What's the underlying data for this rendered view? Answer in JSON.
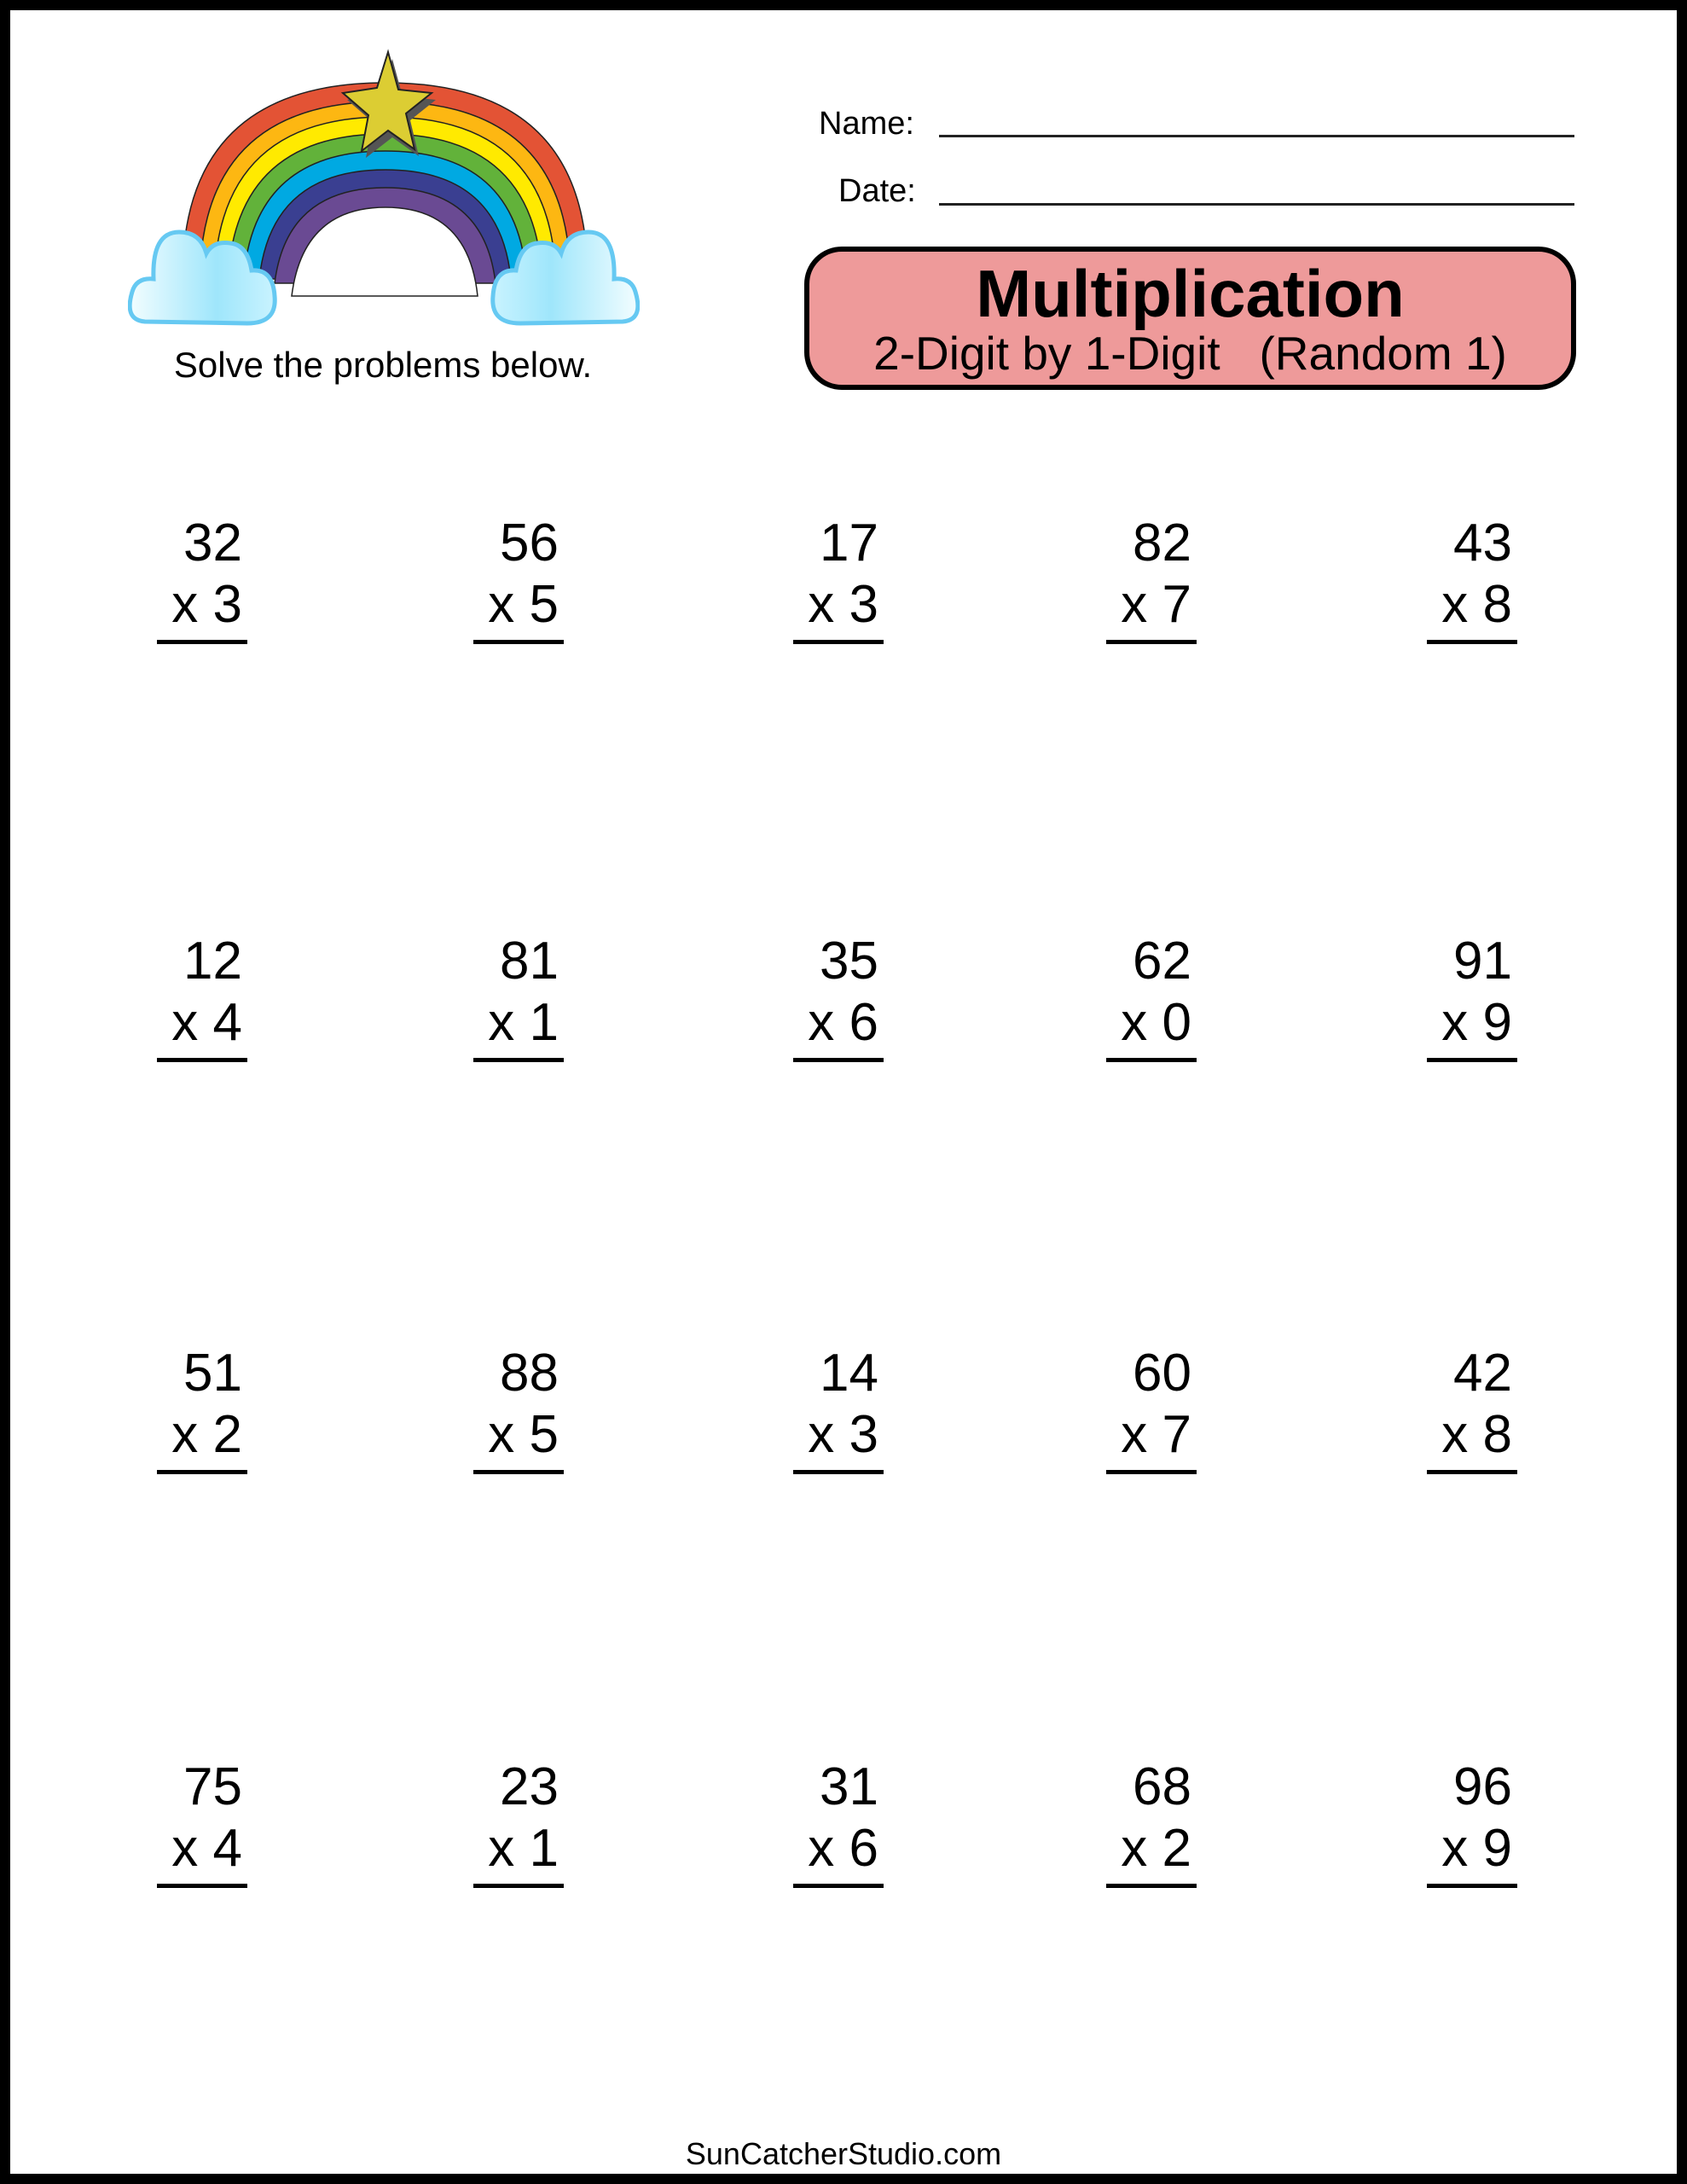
{
  "header": {
    "name_label": "Name:",
    "date_label": "Date:",
    "title": "Multiplication",
    "subtitle": "2-Digit by 1-Digit   (Random 1)",
    "instructions": "Solve the problems below.",
    "title_box_color": "#ee9a9a",
    "illustration": "rainbow-with-star-and-clouds"
  },
  "problems": [
    [
      {
        "top": "32",
        "bottom": "x 3"
      },
      {
        "top": "56",
        "bottom": "x 5"
      },
      {
        "top": "17",
        "bottom": "x 3"
      },
      {
        "top": "82",
        "bottom": "x 7"
      },
      {
        "top": "43",
        "bottom": "x 8"
      }
    ],
    [
      {
        "top": "12",
        "bottom": "x 4"
      },
      {
        "top": "81",
        "bottom": "x 1"
      },
      {
        "top": "35",
        "bottom": "x 6"
      },
      {
        "top": "62",
        "bottom": "x 0"
      },
      {
        "top": "91",
        "bottom": "x 9"
      }
    ],
    [
      {
        "top": "51",
        "bottom": "x 2"
      },
      {
        "top": "88",
        "bottom": "x 5"
      },
      {
        "top": "14",
        "bottom": "x 3"
      },
      {
        "top": "60",
        "bottom": "x 7"
      },
      {
        "top": "42",
        "bottom": "x 8"
      }
    ],
    [
      {
        "top": "75",
        "bottom": "x 4"
      },
      {
        "top": "23",
        "bottom": "x 1"
      },
      {
        "top": "31",
        "bottom": "x 6"
      },
      {
        "top": "68",
        "bottom": "x 2"
      },
      {
        "top": "96",
        "bottom": "x 9"
      }
    ]
  ],
  "footer": {
    "text": "SunCatcherStudio.com"
  }
}
